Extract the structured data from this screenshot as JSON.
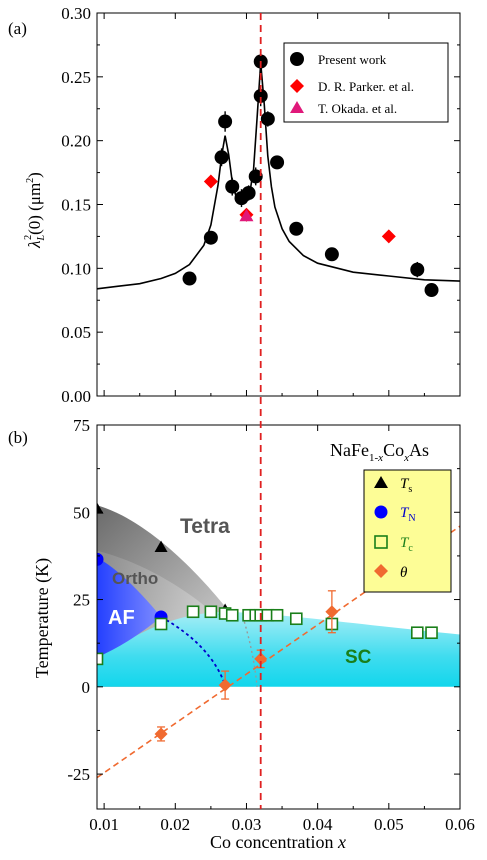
{
  "chart_data": [
    {
      "type": "scatter",
      "panel_label": "(a)",
      "ylabel_parts": {
        "lambda": "λ",
        "sub": "L",
        "sup": "2",
        "rest": "(0) (μm",
        "sup2": "2",
        "close": ")"
      },
      "xlim": [
        0.009,
        0.06
      ],
      "ylim": [
        0.0,
        0.3
      ],
      "yticks": [
        "0.00",
        "0.05",
        "0.10",
        "0.15",
        "0.20",
        "0.25",
        "0.30"
      ],
      "legend": {
        "placement": "top-right",
        "entries": [
          "Present work",
          "D. R. Parker. et al.",
          "T. Okada. et al."
        ]
      },
      "series": [
        {
          "name": "Present work",
          "marker": "circle",
          "color": "#000000",
          "x": [
            0.022,
            0.025,
            0.0265,
            0.027,
            0.028,
            0.0293,
            0.0303,
            0.0313,
            0.032,
            0.032,
            0.033,
            0.0343,
            0.037,
            0.042,
            0.054,
            0.056
          ],
          "y": [
            0.092,
            0.124,
            0.187,
            0.215,
            0.164,
            0.155,
            0.159,
            0.172,
            0.262,
            0.235,
            0.217,
            0.183,
            0.131,
            0.111,
            0.099,
            0.083
          ],
          "err": [
            0.004,
            0.005,
            0.007,
            0.008,
            0.007,
            0.007,
            0.006,
            0.007,
            0.009,
            0.008,
            0.006,
            0.005,
            0.005,
            0.004,
            0.006,
            0.004
          ]
        },
        {
          "name": "D. R. Parker. et al.",
          "marker": "diamond",
          "color": "#ff0000",
          "x": [
            0.025,
            0.03,
            0.05
          ],
          "y": [
            0.168,
            0.142,
            0.125
          ]
        },
        {
          "name": "T. Okada. et al.",
          "marker": "triangle",
          "color": "#e0197a",
          "x": [
            0.03
          ],
          "y": [
            0.141
          ]
        }
      ],
      "fit_curve": {
        "x": [
          0.009,
          0.012,
          0.015,
          0.018,
          0.02,
          0.022,
          0.024,
          0.025,
          0.026,
          0.0265,
          0.027,
          0.0275,
          0.028,
          0.0285,
          0.029,
          0.0295,
          0.03,
          0.0305,
          0.031,
          0.0315,
          0.032,
          0.0325,
          0.033,
          0.0335,
          0.034,
          0.035,
          0.036,
          0.038,
          0.04,
          0.045,
          0.05,
          0.055,
          0.06
        ],
        "y": [
          0.084,
          0.086,
          0.088,
          0.092,
          0.096,
          0.103,
          0.118,
          0.134,
          0.165,
          0.188,
          0.204,
          0.189,
          0.168,
          0.157,
          0.152,
          0.151,
          0.153,
          0.16,
          0.178,
          0.218,
          0.261,
          0.228,
          0.188,
          0.164,
          0.148,
          0.131,
          0.121,
          0.11,
          0.104,
          0.097,
          0.094,
          0.091,
          0.09
        ]
      },
      "vline_x": 0.032
    },
    {
      "type": "scatter",
      "panel_label": "(b)",
      "title_parts": {
        "a": "NaFe",
        "b": "1-",
        "c": "x",
        "d": "Co",
        "e": "x",
        "f": "As"
      },
      "ylabel": "Temperature (K)",
      "xlabel_parts": {
        "text": "Co concentration ",
        "var": "x"
      },
      "xlim": [
        0.009,
        0.06
      ],
      "ylim": [
        -35,
        75
      ],
      "xticks": [
        "0.01",
        "0.02",
        "0.03",
        "0.04",
        "0.05",
        "0.06"
      ],
      "yticks": [
        "-25",
        "0",
        "25",
        "50",
        "75"
      ],
      "region_labels": [
        "Tetra",
        "Ortho",
        "AF",
        "SC"
      ],
      "legend": {
        "placement": "top-right",
        "entries": [
          {
            "sym": "T",
            "sub": "s"
          },
          {
            "sym": "T",
            "sub": "N"
          },
          {
            "sym": "T",
            "sub": "c"
          },
          {
            "sym": "θ",
            "sub": ""
          }
        ]
      },
      "series": [
        {
          "name": "Ts",
          "marker": "triangle",
          "color": "#000000",
          "x": [
            0.009,
            0.018,
            0.027
          ],
          "y": [
            51,
            40,
            22
          ]
        },
        {
          "name": "TN",
          "marker": "circle",
          "color": "#0000ff",
          "x": [
            0.009,
            0.018
          ],
          "y": [
            36.5,
            20
          ]
        },
        {
          "name": "Tc",
          "marker": "open-square",
          "color": "#1a7f1a",
          "x": [
            0.009,
            0.018,
            0.0225,
            0.025,
            0.027,
            0.028,
            0.0303,
            0.0313,
            0.032,
            0.033,
            0.0343,
            0.037,
            0.042,
            0.054,
            0.056
          ],
          "y": [
            8,
            18,
            21.5,
            21.5,
            21,
            20.5,
            20.5,
            20.5,
            20.5,
            20.5,
            20.5,
            19.5,
            18,
            15.5,
            15.5
          ]
        },
        {
          "name": "θ",
          "marker": "diamond",
          "color": "#f06a30",
          "x": [
            0.018,
            0.027,
            0.032,
            0.042
          ],
          "y": [
            -13.5,
            0.5,
            8,
            21.5
          ],
          "err": [
            2,
            4,
            2.5,
            6
          ]
        }
      ],
      "vline_x": 0.032
    }
  ]
}
